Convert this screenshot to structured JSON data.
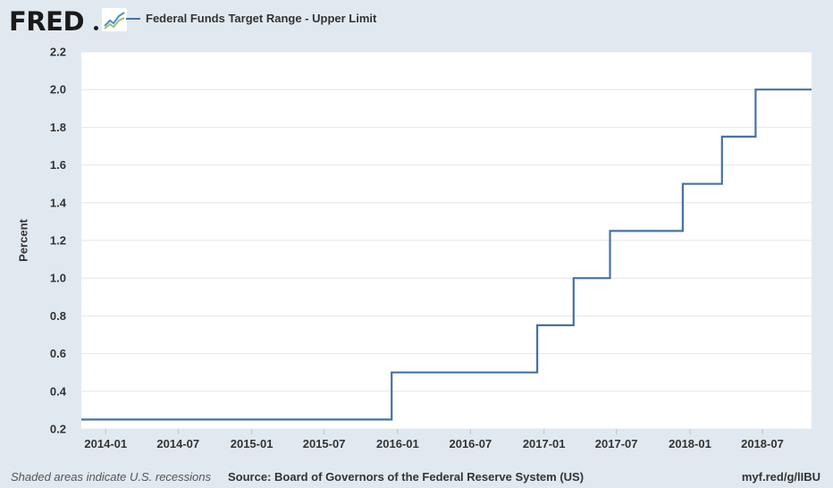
{
  "header": {
    "logo_text": "FRED",
    "logo_icon": "chart-line-icon",
    "legend_label": "Federal Funds Target Range - Upper Limit"
  },
  "colors": {
    "series": "#4572a7",
    "background": "#e1e9f0",
    "plot_background": "#ffffff",
    "gridline": "#e6e6e6"
  },
  "chart_data": {
    "type": "line",
    "step": true,
    "title": "",
    "xlabel": "",
    "ylabel": "Percent",
    "ylim": [
      0.2,
      2.2
    ],
    "yticks": [
      "0.2",
      "0.4",
      "0.6",
      "0.8",
      "1.0",
      "1.2",
      "1.4",
      "1.6",
      "1.8",
      "2.0",
      "2.2"
    ],
    "xlim": [
      "2013-11-01",
      "2018-11-01"
    ],
    "xticks": [
      "2014-01",
      "2014-07",
      "2015-01",
      "2015-07",
      "2016-01",
      "2016-07",
      "2017-01",
      "2017-07",
      "2018-01",
      "2018-07"
    ],
    "grid": true,
    "legend": "top-left",
    "series": [
      {
        "name": "Federal Funds Target Range - Upper Limit",
        "x": [
          "2013-11-01",
          "2015-12-17",
          "2016-12-15",
          "2017-03-16",
          "2017-06-15",
          "2017-12-14",
          "2018-03-22",
          "2018-06-14",
          "2018-11-01"
        ],
        "y": [
          0.25,
          0.5,
          0.75,
          1.0,
          1.25,
          1.5,
          1.75,
          2.0,
          2.0
        ]
      }
    ]
  },
  "footer": {
    "recession_note": "Shaded areas indicate U.S. recessions",
    "source": "Source: Board of Governors of the Federal Reserve System (US)",
    "url": "myf.red/g/lIBU"
  }
}
